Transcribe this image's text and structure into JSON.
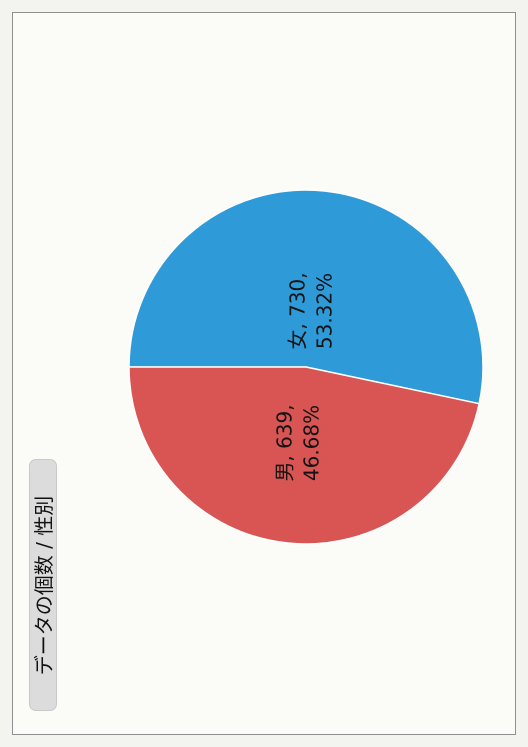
{
  "chart_data": {
    "type": "pie",
    "title": "データの個数 / 性別",
    "slices": [
      {
        "label": "女",
        "value": 730,
        "percent": "53.32%",
        "color": "#2e9ad8"
      },
      {
        "label": "男",
        "value": 639,
        "percent": "46.68%",
        "color": "#d85554"
      }
    ],
    "separator": ", "
  }
}
